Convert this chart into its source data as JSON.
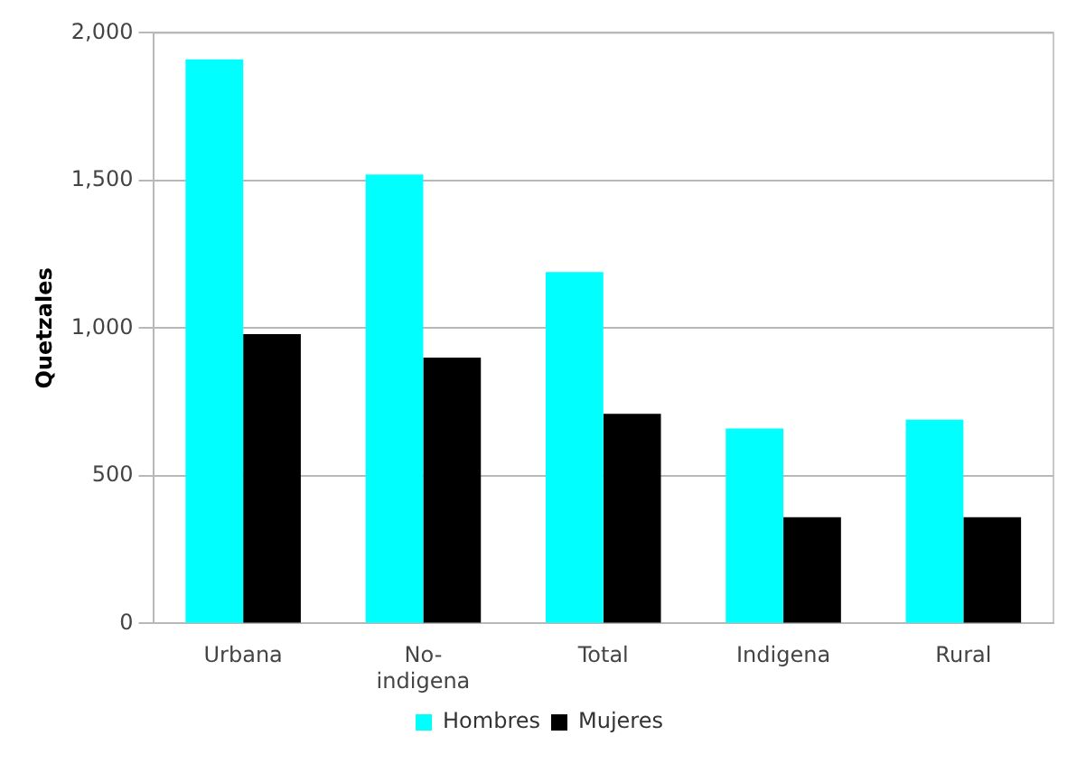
{
  "chart_data": {
    "type": "bar",
    "ylabel": "Quetzales",
    "categories": [
      "Urbana",
      "No-indigena",
      "Total",
      "Indigena",
      "Rural"
    ],
    "series": [
      {
        "name": "Hombres",
        "color": "#00ffff",
        "values": [
          1910,
          1520,
          1190,
          660,
          690
        ]
      },
      {
        "name": "Mujeres",
        "color": "#000000",
        "values": [
          980,
          900,
          710,
          360,
          360
        ]
      }
    ],
    "ylim": [
      0,
      2000
    ],
    "yticks": [
      {
        "value": 0,
        "label": "0"
      },
      {
        "value": 500,
        "label": "500"
      },
      {
        "value": 1000,
        "label": "1,000"
      },
      {
        "value": 1500,
        "label": "1,500"
      },
      {
        "value": 2000,
        "label": "2,000"
      }
    ],
    "grid": "y",
    "legend": "bottom"
  }
}
